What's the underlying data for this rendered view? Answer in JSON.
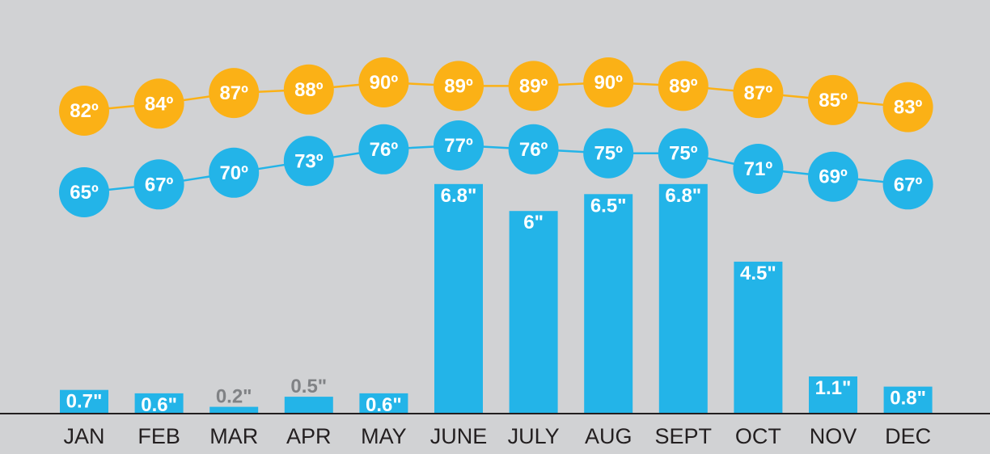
{
  "chart_data": {
    "type": "bar",
    "title": "",
    "xlabel": "",
    "ylabel": "",
    "categories": [
      "JAN",
      "FEB",
      "MAR",
      "APR",
      "MAY",
      "JUNE",
      "JULY",
      "AUG",
      "SEPT",
      "OCT",
      "NOV",
      "DEC"
    ],
    "series": [
      {
        "kind": "bar",
        "values": [
          0.7,
          0.6,
          0.2,
          0.5,
          0.6,
          6.8,
          6.0,
          6.5,
          6.8,
          4.5,
          1.1,
          0.8
        ],
        "labels": [
          "0.7\"",
          "0.6\"",
          "0.2\"",
          "0.5\"",
          "0.6\"",
          "6.8\"",
          "6\"",
          "6.5\"",
          "6.8\"",
          "4.5\"",
          "1.1\"",
          "0.8\""
        ],
        "color": "#23b4e8"
      },
      {
        "kind": "line",
        "values": [
          82,
          84,
          87,
          88,
          90,
          89,
          89,
          90,
          89,
          87,
          85,
          83
        ],
        "labels": [
          "82º",
          "84º",
          "87º",
          "88º",
          "90º",
          "89º",
          "89º",
          "90º",
          "89º",
          "87º",
          "85º",
          "83º"
        ],
        "color": "#fbb116"
      },
      {
        "kind": "line",
        "values": [
          65,
          67,
          70,
          73,
          76,
          77,
          76,
          75,
          75,
          71,
          69,
          67
        ],
        "labels": [
          "65º",
          "67º",
          "70º",
          "73º",
          "76º",
          "77º",
          "76º",
          "75º",
          "75º",
          "71º",
          "69º",
          "67º"
        ],
        "color": "#23b4e8"
      }
    ],
    "label_outside_color": "#808285",
    "background": "#d1d2d4",
    "grid": false,
    "legend": "none"
  }
}
